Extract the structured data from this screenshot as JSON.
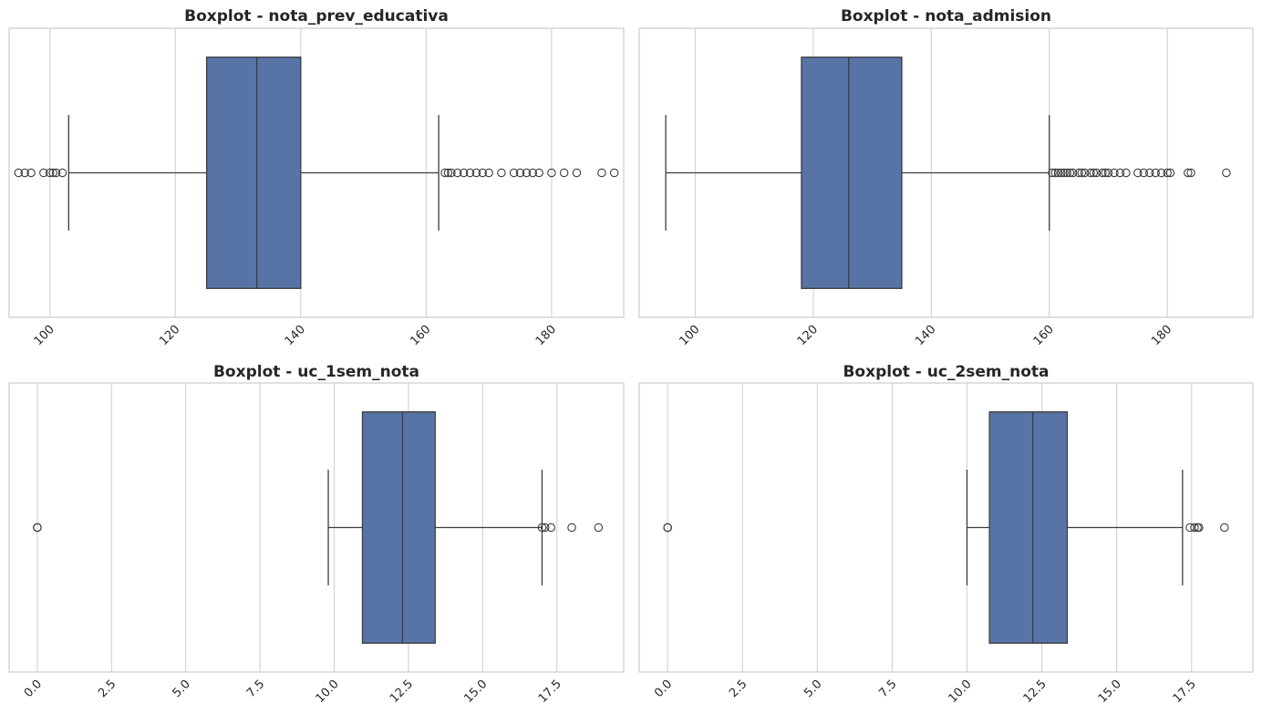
{
  "chart_data": [
    {
      "type": "boxplot",
      "title": "Boxplot - nota_prev_educativa",
      "xlabel": "",
      "ylabel": "",
      "xlim": [
        93.5,
        191.5
      ],
      "xticks": [
        100,
        120,
        140,
        160,
        180
      ],
      "xtick_labels": [
        "100",
        "120",
        "140",
        "160",
        "180"
      ],
      "grid": "vertical",
      "box": {
        "whisker_low": 103,
        "q1": 125,
        "median": 133,
        "q3": 140,
        "whisker_high": 162
      },
      "outliers": [
        95,
        96,
        97,
        99,
        100,
        100.5,
        101,
        102,
        163,
        163.5,
        164,
        165,
        166,
        167,
        168,
        169,
        170,
        172,
        174,
        175,
        176,
        177,
        178,
        180,
        182,
        184,
        188,
        190
      ]
    },
    {
      "type": "boxplot",
      "title": "Boxplot - nota_admision",
      "xlabel": "",
      "ylabel": "",
      "xlim": [
        90.5,
        194.5
      ],
      "xticks": [
        100,
        120,
        140,
        160,
        180
      ],
      "xtick_labels": [
        "100",
        "120",
        "140",
        "160",
        "180"
      ],
      "grid": "vertical",
      "box": {
        "whisker_low": 95,
        "q1": 118,
        "median": 126,
        "q3": 135,
        "whisker_high": 160
      },
      "outliers": [
        160.5,
        161,
        161.5,
        162,
        162.5,
        163,
        163.5,
        164,
        165,
        165.5,
        166,
        167,
        167.5,
        168,
        169,
        169.5,
        170,
        171,
        172,
        173,
        175,
        176,
        177,
        178,
        179,
        180,
        180.5,
        183.5,
        184,
        190
      ]
    },
    {
      "type": "boxplot",
      "title": "Boxplot - uc_1sem_nota",
      "xlabel": "",
      "ylabel": "",
      "xlim": [
        -0.95,
        19.75
      ],
      "xticks": [
        0,
        2.5,
        5,
        7.5,
        10,
        12.5,
        15,
        17.5
      ],
      "xtick_labels": [
        "0.0",
        "2.5",
        "5.0",
        "7.5",
        "10.0",
        "12.5",
        "15.0",
        "17.5"
      ],
      "grid": "vertical",
      "box": {
        "whisker_low": 9.8,
        "q1": 10.95,
        "median": 12.3,
        "q3": 13.4,
        "whisker_high": 17.0
      },
      "outliers": [
        0,
        0,
        0,
        17.0,
        17.1,
        17.3,
        18.0,
        18.9
      ]
    },
    {
      "type": "boxplot",
      "title": "Boxplot - uc_2sem_nota",
      "xlabel": "",
      "ylabel": "",
      "xlim": [
        -0.95,
        19.55
      ],
      "xticks": [
        0,
        2.5,
        5,
        7.5,
        10,
        12.5,
        15,
        17.5
      ],
      "xtick_labels": [
        "0.0",
        "2.5",
        "5.0",
        "7.5",
        "10.0",
        "12.5",
        "15.0",
        "17.5"
      ],
      "grid": "vertical",
      "box": {
        "whisker_low": 10.0,
        "q1": 10.75,
        "median": 12.2,
        "q3": 13.35,
        "whisker_high": 17.2
      },
      "outliers": [
        0,
        0,
        0,
        17.45,
        17.6,
        17.7,
        17.75,
        18.6
      ]
    }
  ],
  "colors": {
    "box_fill": "#5874a6",
    "line": "#3d3d3d",
    "grid": "#d5d5d5",
    "frame": "#cccccc",
    "text": "#262626",
    "background": "#ffffff"
  }
}
